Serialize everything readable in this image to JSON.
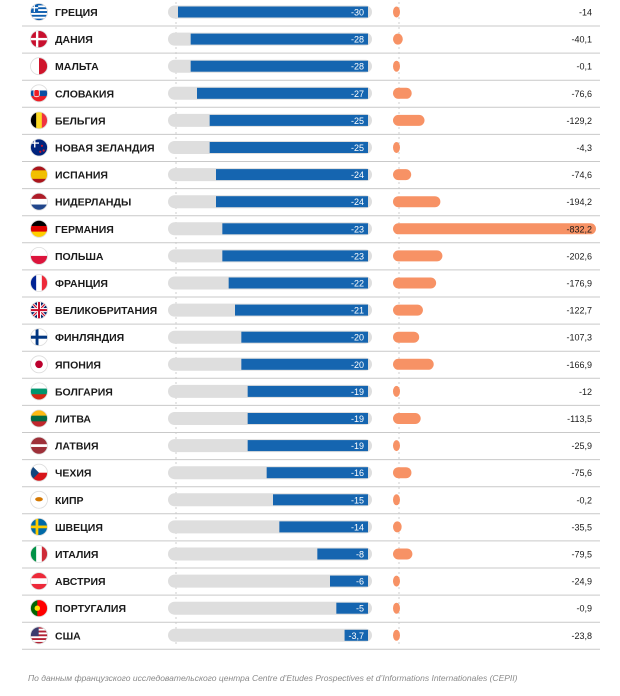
{
  "chart_data": {
    "type": "bar",
    "categories": [
      "ГРЕЦИЯ",
      "ДАНИЯ",
      "МАЛЬТА",
      "СЛОВАКИЯ",
      "БЕЛЬГИЯ",
      "НОВАЯ ЗЕЛАНДИЯ",
      "ИСПАНИЯ",
      "НИДЕРЛАНДЫ",
      "ГЕРМАНИЯ",
      "ПОЛЬША",
      "ФРАНЦИЯ",
      "ВЕЛИКОБРИТАНИЯ",
      "ФИНЛЯНДИЯ",
      "ЯПОНИЯ",
      "БОЛГАРИЯ",
      "ЛИТВА",
      "ЛАТВИЯ",
      "ЧЕХИЯ",
      "КИПР",
      "ШВЕЦИЯ",
      "ИТАЛИЯ",
      "АВСТРИЯ",
      "ПОРТУГАЛИЯ",
      "США"
    ],
    "flags": [
      "greece-flag",
      "denmark-flag",
      "malta-flag",
      "slovakia-flag",
      "belgium-flag",
      "new-zealand-flag",
      "spain-flag",
      "netherlands-flag",
      "germany-flag",
      "poland-flag",
      "france-flag",
      "uk-flag",
      "finland-flag",
      "japan-flag",
      "bulgaria-flag",
      "lithuania-flag",
      "latvia-flag",
      "czechia-flag",
      "cyprus-flag",
      "sweden-flag",
      "italy-flag",
      "austria-flag",
      "portugal-flag",
      "usa-flag"
    ],
    "series": [
      {
        "values": [
          -30,
          -28,
          -28,
          -27,
          -25,
          -25,
          -24,
          -24,
          -23,
          -23,
          -22,
          -21,
          -20,
          -20,
          -19,
          -19,
          -19,
          -16,
          -15,
          -14,
          -8,
          -6,
          -5,
          -3.7
        ],
        "labels": [
          "-30",
          "-28",
          "-28",
          "-27",
          "-25",
          "-25",
          "-24",
          "-24",
          "-23",
          "-23",
          "-22",
          "-21",
          "-20",
          "-20",
          "-19",
          "-19",
          "-19",
          "-16",
          "-15",
          "-14",
          "-8",
          "-6",
          "-5",
          "-3,7"
        ]
      },
      {
        "values": [
          -14,
          -40.1,
          -0.1,
          -76.6,
          -129.2,
          -4.3,
          -74.6,
          -194.2,
          -832.2,
          -202.6,
          -176.9,
          -122.7,
          -107.3,
          -166.9,
          -12,
          -113.5,
          -25.9,
          -75.6,
          -0.2,
          -35.5,
          -79.5,
          -24.9,
          -0.9,
          -23.8
        ],
        "labels": [
          "-14",
          "-40,1",
          "-0,1",
          "-76,6",
          "-129,2",
          "-4,3",
          "-74,6",
          "-194,2",
          "-832,2",
          "-202,6",
          "-176,9",
          "-122,7",
          "-107,3",
          "-166,9",
          "-12",
          "-113,5",
          "-25,9",
          "-75,6",
          "-0,2",
          "-35,5",
          "-79,5",
          "-24,9",
          "-0,9",
          "-23,8"
        ]
      }
    ],
    "colors": {
      "blue_bar": "#1565b0",
      "track": "#dedede",
      "orange_bar": "#f79265",
      "orange_bar_light": "#fbb28c",
      "text": "#1a1a1a",
      "separator": "#c9c9c9",
      "dashed_axis": "#cfcfcf"
    },
    "footnote": "По данным французского исследовательского центра Centre d’Etudes Prospectives et d’Informations Internationales (CEPII)"
  }
}
